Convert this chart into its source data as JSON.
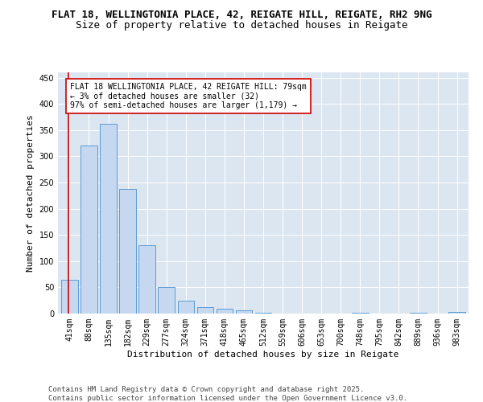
{
  "title_line1": "FLAT 18, WELLINGTONIA PLACE, 42, REIGATE HILL, REIGATE, RH2 9NG",
  "title_line2": "Size of property relative to detached houses in Reigate",
  "xlabel": "Distribution of detached houses by size in Reigate",
  "ylabel": "Number of detached properties",
  "categories": [
    "41sqm",
    "88sqm",
    "135sqm",
    "182sqm",
    "229sqm",
    "277sqm",
    "324sqm",
    "371sqm",
    "418sqm",
    "465sqm",
    "512sqm",
    "559sqm",
    "606sqm",
    "653sqm",
    "700sqm",
    "748sqm",
    "795sqm",
    "842sqm",
    "889sqm",
    "936sqm",
    "983sqm"
  ],
  "values": [
    65,
    320,
    362,
    238,
    130,
    50,
    25,
    13,
    9,
    6,
    1,
    0,
    0,
    0,
    0,
    1,
    0,
    0,
    1,
    0,
    3
  ],
  "bar_color": "#c5d8f0",
  "bar_edge_color": "#5b9bd5",
  "marker_color": "#cc0000",
  "annotation_text": "FLAT 18 WELLINGTONIA PLACE, 42 REIGATE HILL: 79sqm\n← 3% of detached houses are smaller (32)\n97% of semi-detached houses are larger (1,179) →",
  "annotation_box_color": "#ffffff",
  "annotation_box_edge": "#cc0000",
  "ylim": [
    0,
    460
  ],
  "yticks": [
    0,
    50,
    100,
    150,
    200,
    250,
    300,
    350,
    400,
    450
  ],
  "footer_line1": "Contains HM Land Registry data © Crown copyright and database right 2025.",
  "footer_line2": "Contains public sector information licensed under the Open Government Licence v3.0.",
  "plot_bg_color": "#dce6f1",
  "fig_bg_color": "#ffffff",
  "title_fontsize": 9,
  "subtitle_fontsize": 9,
  "axis_label_fontsize": 8,
  "tick_fontsize": 7,
  "footer_fontsize": 6.5
}
